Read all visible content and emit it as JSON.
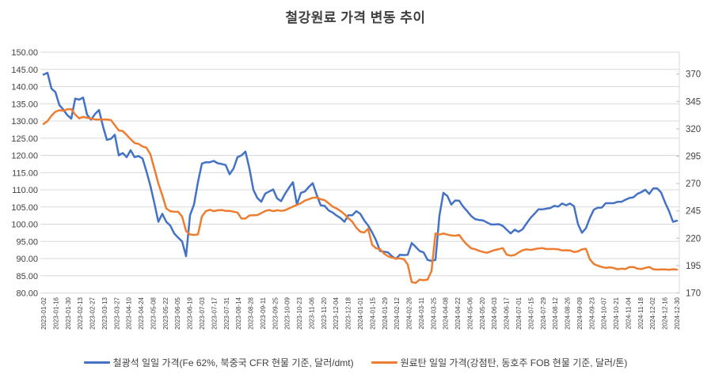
{
  "title": "철강원료 가격 변동 추이",
  "colors": {
    "series1": "#4472C4",
    "series2": "#ED7D31",
    "grid": "#D9D9D9",
    "axis_text": "#404040"
  },
  "chart_data": {
    "type": "line",
    "title": "철강원료 가격 변동 추이",
    "grid": true,
    "legend_position": "bottom",
    "y_left": {
      "min": 80,
      "max": 150,
      "tick_step": 5,
      "tick_format_decimals": 2
    },
    "y_right": {
      "min": 170,
      "max": 390,
      "tick_min": 170,
      "tick_max": 370,
      "tick_step": 25
    },
    "x_labels": [
      "2023-01-02",
      "2023-01-16",
      "2023-01-30",
      "2023-02-13",
      "2023-02-27",
      "2023-03-13",
      "2023-03-27",
      "2023-04-10",
      "2023-04-24",
      "2023-05-08",
      "2023-05-22",
      "2023-06-05",
      "2023-06-19",
      "2023-07-03",
      "2023-07-17",
      "2023-07-31",
      "2023-08-14",
      "2023-08-28",
      "2023-09-11",
      "2023-09-25",
      "2023-10-09",
      "2023-10-23",
      "2023-11-06",
      "2023-11-20",
      "2023-12-04",
      "2023-12-18",
      "2024-01-01",
      "2024-01-15",
      "2024-01-29",
      "2024-02-12",
      "2024-02-26",
      "2024-03-11",
      "2024-03-25",
      "2024-04-08",
      "2024-04-22",
      "2024-05-06",
      "2024-05-20",
      "2024-06-03",
      "2024-06-17",
      "2024-07-01",
      "2024-07-15",
      "2024-07-29",
      "2024-08-12",
      "2024-08-26",
      "2024-09-09",
      "2024-09-23",
      "2024-10-07",
      "2024-10-21",
      "2024-11-04",
      "2024-11-18",
      "2024-12-02",
      "2024-12-16",
      "2024-12-30"
    ],
    "series": [
      {
        "name": "철광석 일일 가격(Fe 62%, 북중국 CFR 현물 기준, 달러/dmt)",
        "axis": "left",
        "color": "#4472C4",
        "values": [
          143.5,
          144,
          139.4,
          138.4,
          134.6,
          133.3,
          131.7,
          130.7,
          136.5,
          136.2,
          136.8,
          131.8,
          130.4,
          132,
          133.2,
          128.5,
          124.5,
          124.8,
          126,
          120,
          120.7,
          119.5,
          121.5,
          119.5,
          119.8,
          119.1,
          115.3,
          111.1,
          106.1,
          100.7,
          103,
          100.7,
          99.6,
          97.3,
          96.1,
          95,
          90.7,
          102.6,
          105.7,
          112.2,
          117.6,
          118,
          118,
          118.4,
          117.7,
          117.5,
          117.2,
          114.5,
          116.2,
          119.5,
          120,
          121.1,
          116.2,
          110,
          107.6,
          106.5,
          108.9,
          109.5,
          110.1,
          107.5,
          106.7,
          108.8,
          110.6,
          112.2,
          105.7,
          109.1,
          109.5,
          110.8,
          111.9,
          108.5,
          105.5,
          105.3,
          104,
          103.4,
          102.5,
          101.8,
          100.7,
          102.6,
          102.6,
          103.8,
          103,
          101.1,
          99.6,
          97.6,
          95.3,
          92.2,
          92,
          91.8,
          90.7,
          89.9,
          91.1,
          91,
          91.1,
          94.5,
          93.4,
          92.2,
          91.8,
          89.6,
          89.3,
          89.6,
          102.5,
          109.1,
          108.2,
          105.7,
          106.9,
          106.8,
          105.1,
          103.8,
          102.4,
          101.5,
          101.2,
          101.1,
          100.5,
          99.9,
          99.9,
          100,
          99.5,
          98.4,
          97.3,
          98.4,
          97.8,
          98.5,
          100.2,
          101.8,
          103,
          104.3,
          104.3,
          104.5,
          104.7,
          105.3,
          105.1,
          106,
          105.5,
          106,
          105.2,
          100,
          97.5,
          98.8,
          101.8,
          104.2,
          104.8,
          104.8,
          106.1,
          106.1,
          106.1,
          106.5,
          106.5,
          107.1,
          107.6,
          107.8,
          108.8,
          109.3,
          110,
          108.8,
          110.4,
          110.4,
          109.2,
          106.3,
          103.8,
          100.7,
          101
        ]
      },
      {
        "name": "원료탄 일일 가격(강점탄, 동호주 FOB 현물 기준, 달러/톤)",
        "axis": "right",
        "color": "#ED7D31",
        "values": [
          324.5,
          327,
          332,
          335.5,
          337,
          336.5,
          337.8,
          338,
          333,
          329.5,
          331,
          330,
          329.5,
          328.5,
          328.5,
          328.5,
          328.5,
          328,
          323.3,
          318.5,
          318,
          314.3,
          310.5,
          307,
          306.2,
          303.9,
          302.7,
          296.6,
          283.4,
          270.1,
          259.2,
          247.2,
          244.7,
          244.3,
          244.1,
          239.9,
          226.6,
          223.5,
          223,
          223.5,
          239.9,
          244.7,
          246,
          244.7,
          245.6,
          245.8,
          245,
          245,
          244.3,
          243.5,
          238,
          238,
          240.8,
          241,
          241.2,
          243,
          244.9,
          245.8,
          244.7,
          245.6,
          245,
          245.6,
          247.2,
          249,
          250.5,
          252,
          254.4,
          255.6,
          257,
          257.3,
          255.6,
          254.8,
          252,
          249,
          247.2,
          244.9,
          242,
          238.3,
          235.1,
          229.7,
          226,
          225.2,
          228.7,
          214,
          210.8,
          210,
          206,
          203.5,
          202.3,
          201.5,
          201.5,
          201,
          196,
          179.8,
          179.2,
          182.2,
          181.6,
          182.2,
          190,
          224.3,
          223.3,
          224.3,
          223.3,
          222.5,
          222.3,
          223,
          218,
          214,
          210.8,
          210,
          208.5,
          207.5,
          206.7,
          208,
          209.3,
          210,
          211,
          205,
          204.2,
          204.7,
          207,
          209,
          209.8,
          209.3,
          210,
          210.7,
          211,
          210.1,
          210.2,
          210.2,
          209.8,
          208.9,
          209,
          208.9,
          207.4,
          207.9,
          209.8,
          210.4,
          200.7,
          196.5,
          194.9,
          193.8,
          192.9,
          193.4,
          192.8,
          191.6,
          192.2,
          191.9,
          193.6,
          193.8,
          192.2,
          191.8,
          192.9,
          193.8,
          191.7,
          191.3,
          191.5,
          191.5,
          191.2,
          191.7,
          191.3
        ]
      }
    ]
  }
}
